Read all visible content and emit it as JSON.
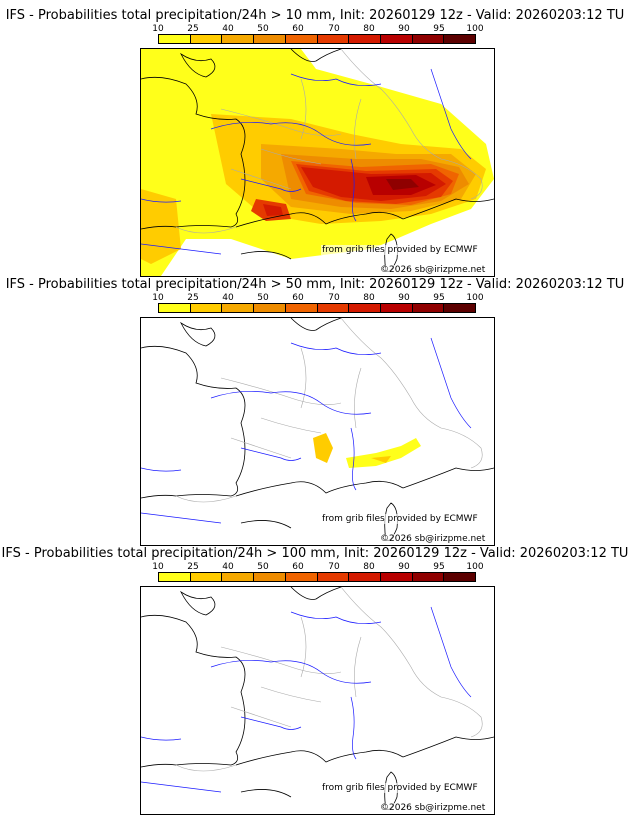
{
  "colors": {
    "scale": [
      "#ffff1a",
      "#ffcc00",
      "#f5a900",
      "#ee8c00",
      "#f06400",
      "#e53a00",
      "#d41a00",
      "#b80000",
      "#8f0000",
      "#5c0000"
    ],
    "coast": "#000000",
    "border": "#aaaaaa",
    "river": "#1a1aff"
  },
  "legend": {
    "labels": [
      "10",
      "25",
      "40",
      "50",
      "60",
      "70",
      "80",
      "90",
      "95",
      "100"
    ]
  },
  "panels": [
    {
      "title": "IFS - Probabilities total precipitation/24h > 10 mm, Init: 20260129 12z - Valid: 20260203:12 TU",
      "credit_source": "from grib files provided by ECMWF",
      "credit_copyright": "©2026 sb@irizpme.net"
    },
    {
      "title": "IFS - Probabilities total precipitation/24h > 50 mm, Init: 20260129 12z - Valid: 20260203:12 TU",
      "credit_source": "from grib files provided by ECMWF",
      "credit_copyright": "©2026 sb@irizpme.net"
    },
    {
      "title": "IFS - Probabilities total precipitation/24h > 100 mm, Init: 20260129 12z - Valid: 20260203:12 TU",
      "credit_source": "from grib files provided by ECMWF",
      "credit_copyright": "©2026 sb@irizpme.net"
    }
  ]
}
